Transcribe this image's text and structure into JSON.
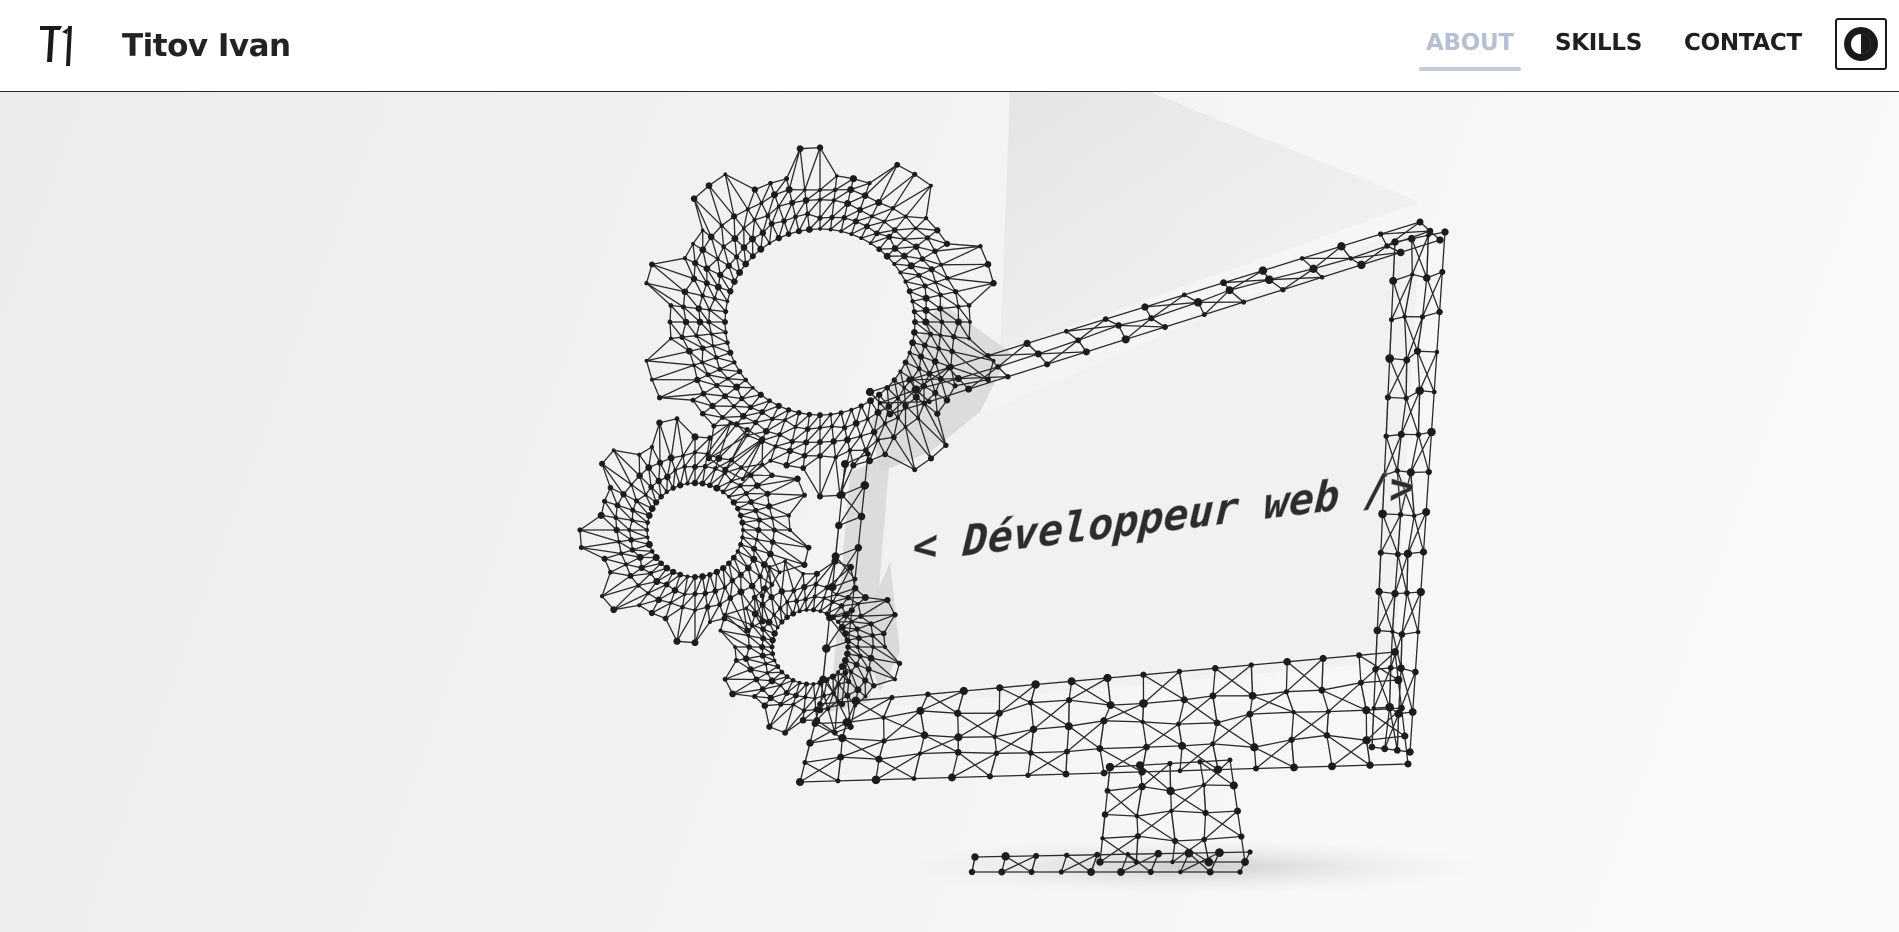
{
  "header": {
    "brand_name": "Titov Ivan",
    "logo_initials": "TI"
  },
  "nav": {
    "items": [
      {
        "label": "ABOUT",
        "active": true
      },
      {
        "label": "SKILLS",
        "active": false
      },
      {
        "label": "CONTACT",
        "active": false
      }
    ]
  },
  "hero": {
    "screen_text": "< Développeur web />"
  },
  "colors": {
    "accent_inactive": "#b7bfd3",
    "text_dark": "#1f1f1f",
    "header_border": "#2a2a2a"
  },
  "icons": {
    "theme_toggle": "contrast-half-circle-icon",
    "logo": "ti-monogram-icon"
  }
}
